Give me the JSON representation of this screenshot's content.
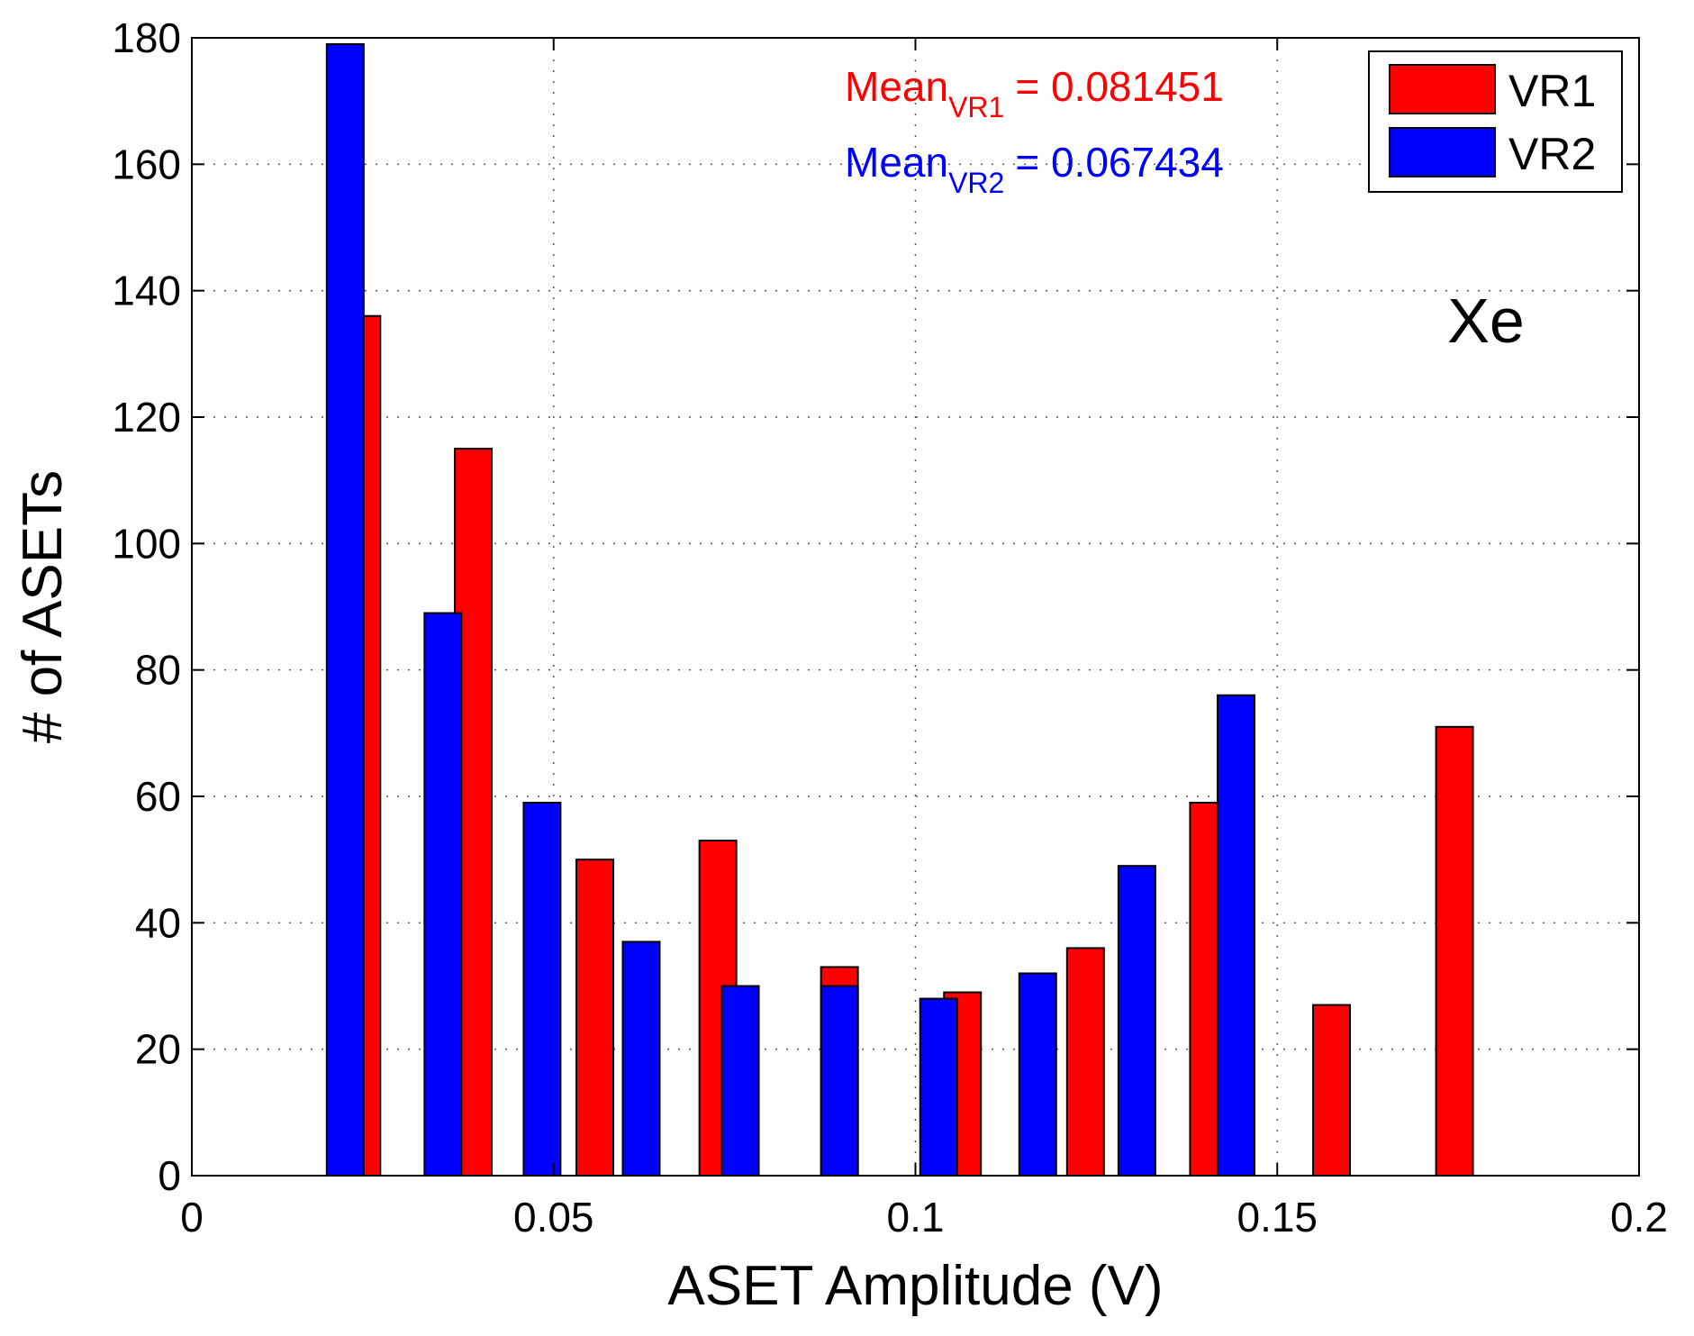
{
  "chart_data": {
    "type": "bar",
    "title": "",
    "xlabel": "ASET Amplitude (V)",
    "ylabel": "# of ASETs",
    "xlim": [
      0,
      0.2
    ],
    "ylim": [
      0,
      180
    ],
    "x_ticks": [
      "0",
      "0.05",
      "0.1",
      "0.15",
      "0.2"
    ],
    "y_ticks": [
      "0",
      "20",
      "40",
      "60",
      "80",
      "100",
      "120",
      "140",
      "160",
      "180"
    ],
    "grid": true,
    "legend_position": "top-right",
    "series": [
      {
        "name": "VR1",
        "color": "#ff0000",
        "x": [
          0.0235,
          0.0389,
          0.0557,
          0.0727,
          0.0895,
          0.1065,
          0.1235,
          0.1405,
          0.1575,
          0.1745
        ],
        "values": [
          136,
          115,
          50,
          53,
          33,
          29,
          36,
          59,
          27,
          71
        ]
      },
      {
        "name": "VR2",
        "color": "#0000ff",
        "x": [
          0.0212,
          0.0347,
          0.0484,
          0.0621,
          0.0758,
          0.0895,
          0.1032,
          0.1169,
          0.1306,
          0.1443
        ],
        "values": [
          179,
          89,
          59,
          37,
          30,
          30,
          28,
          32,
          49,
          76
        ]
      }
    ],
    "annotations": {
      "mean_vr1": {
        "label": "Mean",
        "subscript": "VR1",
        "value": "= 0.081451",
        "color": "#ff0000"
      },
      "mean_vr2": {
        "label": "Mean",
        "subscript": "VR2",
        "value": "= 0.067434",
        "color": "#0000ff"
      },
      "species": "Xe"
    }
  }
}
